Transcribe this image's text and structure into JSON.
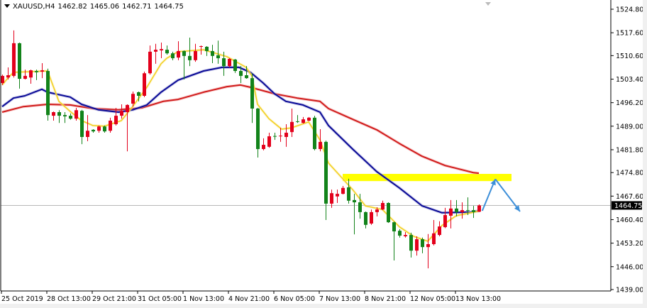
{
  "header": {
    "symbol": "XAUUSD,H4",
    "open": "1462.82",
    "high": "1465.06",
    "low": "1462.71",
    "close": "1464.75"
  },
  "colors": {
    "bull": "#e3001b",
    "bear": "#12831a",
    "ma_fast": "#f2cf1d",
    "ma_mid": "#0a0a96",
    "ma_slow": "#d01c1c",
    "zone": "#ffff00",
    "arrow": "#3d8fd9",
    "price_label_bg": "#000000"
  },
  "chart_data": {
    "type": "candlestick",
    "ylim": [
      1439.0,
      1524.8
    ],
    "y_ticks": [
      "1524.80",
      "1517.60",
      "1510.60",
      "1503.40",
      "1496.20",
      "1489.00",
      "1481.80",
      "1474.80",
      "1467.60",
      "1460.40",
      "1453.20",
      "1446.00",
      "1439.00"
    ],
    "x_ticks": [
      {
        "bar": 0,
        "label": "25 Oct 2019"
      },
      {
        "bar": 8,
        "label": "28 Oct 13:00"
      },
      {
        "bar": 16,
        "label": "29 Oct 21:00"
      },
      {
        "bar": 24,
        "label": "31 Oct 05:00"
      },
      {
        "bar": 32,
        "label": "1 Nov 13:00"
      },
      {
        "bar": 40,
        "label": "4 Nov 21:00"
      },
      {
        "bar": 48,
        "label": "6 Nov 05:00"
      },
      {
        "bar": 56,
        "label": "7 Nov 13:00"
      },
      {
        "bar": 64,
        "label": "8 Nov 21:00"
      },
      {
        "bar": 72,
        "label": "12 Nov 05:00"
      },
      {
        "bar": 80,
        "label": "13 Nov 13:00"
      }
    ],
    "current_price": "1464.75",
    "ohlc": [
      [
        1502.2,
        1504.8,
        1501.6,
        1504.4
      ],
      [
        1503.9,
        1507.0,
        1503.3,
        1504.6
      ],
      [
        1504.4,
        1518.3,
        1503.9,
        1514.4
      ],
      [
        1514.4,
        1514.6,
        1500.5,
        1503.5
      ],
      [
        1503.5,
        1506.3,
        1503.3,
        1504.4
      ],
      [
        1503.9,
        1506.3,
        1502.0,
        1506.1
      ],
      [
        1505.9,
        1506.3,
        1503.1,
        1505.5
      ],
      [
        1505.7,
        1508.3,
        1503.7,
        1506.1
      ],
      [
        1505.9,
        1506.6,
        1490.7,
        1492.4
      ],
      [
        1492.2,
        1493.5,
        1490.7,
        1493.3
      ],
      [
        1493.3,
        1493.9,
        1490.0,
        1492.2
      ],
      [
        1492.4,
        1493.3,
        1490.0,
        1492.0
      ],
      [
        1492.2,
        1492.9,
        1491.0,
        1491.3
      ],
      [
        1491.3,
        1494.6,
        1490.7,
        1493.9
      ],
      [
        1493.7,
        1494.0,
        1483.5,
        1485.7
      ],
      [
        1485.7,
        1492.4,
        1484.4,
        1487.6
      ],
      [
        1487.9,
        1488.1,
        1487.0,
        1487.4
      ],
      [
        1487.6,
        1489.2,
        1487.0,
        1488.9
      ],
      [
        1488.9,
        1489.2,
        1487.0,
        1487.4
      ],
      [
        1487.6,
        1491.6,
        1487.0,
        1490.7
      ],
      [
        1489.6,
        1494.6,
        1489.2,
        1492.2
      ],
      [
        1492.2,
        1495.7,
        1491.3,
        1493.7
      ],
      [
        1493.3,
        1495.7,
        1481.3,
        1495.5
      ],
      [
        1495.9,
        1499.6,
        1495.0,
        1498.9
      ],
      [
        1499.4,
        1499.6,
        1496.6,
        1498.3
      ],
      [
        1498.3,
        1505.7,
        1497.9,
        1505.2
      ],
      [
        1505.2,
        1513.7,
        1504.8,
        1511.8
      ],
      [
        1511.8,
        1514.2,
        1508.1,
        1512.4
      ],
      [
        1512.2,
        1514.6,
        1509.8,
        1512.6
      ],
      [
        1512.4,
        1513.7,
        1510.9,
        1511.3
      ],
      [
        1511.3,
        1511.8,
        1509.2,
        1509.8
      ],
      [
        1510.0,
        1515.0,
        1509.2,
        1512.0
      ],
      [
        1512.0,
        1512.2,
        1503.3,
        1510.5
      ],
      [
        1510.5,
        1516.1,
        1507.4,
        1509.2
      ],
      [
        1509.2,
        1514.2,
        1508.7,
        1512.0
      ],
      [
        1513.3,
        1513.7,
        1510.9,
        1513.5
      ],
      [
        1513.3,
        1513.5,
        1510.5,
        1512.0
      ],
      [
        1512.0,
        1513.9,
        1508.3,
        1510.5
      ],
      [
        1510.7,
        1515.2,
        1508.1,
        1509.8
      ],
      [
        1509.8,
        1511.8,
        1504.4,
        1507.4
      ],
      [
        1507.4,
        1509.8,
        1507.0,
        1509.6
      ],
      [
        1509.4,
        1509.6,
        1505.3,
        1505.9
      ],
      [
        1505.9,
        1507.4,
        1502.2,
        1504.4
      ],
      [
        1504.6,
        1507.4,
        1503.5,
        1503.7
      ],
      [
        1503.7,
        1505.2,
        1490.0,
        1494.4
      ],
      [
        1494.4,
        1494.6,
        1479.4,
        1482.0
      ],
      [
        1482.0,
        1485.3,
        1481.6,
        1483.3
      ],
      [
        1482.7,
        1487.0,
        1482.4,
        1485.9
      ],
      [
        1486.0,
        1487.0,
        1484.8,
        1485.9
      ],
      [
        1485.9,
        1488.5,
        1484.2,
        1486.1
      ],
      [
        1485.7,
        1489.6,
        1482.7,
        1487.0
      ],
      [
        1487.2,
        1494.4,
        1485.7,
        1490.3
      ],
      [
        1490.5,
        1492.4,
        1490.0,
        1490.3
      ],
      [
        1490.0,
        1491.8,
        1489.8,
        1491.1
      ],
      [
        1490.7,
        1491.8,
        1490.5,
        1491.6
      ],
      [
        1491.6,
        1492.2,
        1481.6,
        1482.0
      ],
      [
        1482.0,
        1488.1,
        1481.3,
        1484.2
      ],
      [
        1484.2,
        1484.6,
        1460.3,
        1465.3
      ],
      [
        1465.3,
        1469.6,
        1464.0,
        1468.5
      ],
      [
        1467.5,
        1469.6,
        1465.5,
        1468.3
      ],
      [
        1468.3,
        1470.7,
        1468.1,
        1470.1
      ],
      [
        1470.3,
        1472.9,
        1465.3,
        1466.2
      ],
      [
        1466.4,
        1468.3,
        1455.9,
        1465.7
      ],
      [
        1465.7,
        1468.3,
        1460.7,
        1462.7
      ],
      [
        1462.7,
        1462.9,
        1457.7,
        1458.8
      ],
      [
        1459.2,
        1463.5,
        1458.8,
        1462.7
      ],
      [
        1462.7,
        1464.2,
        1461.4,
        1463.5
      ],
      [
        1463.5,
        1466.2,
        1463.3,
        1465.5
      ],
      [
        1465.5,
        1465.7,
        1459.4,
        1459.6
      ],
      [
        1459.6,
        1459.8,
        1447.9,
        1456.8
      ],
      [
        1457.0,
        1457.5,
        1454.9,
        1455.5
      ],
      [
        1455.3,
        1456.6,
        1454.9,
        1455.7
      ],
      [
        1455.7,
        1456.4,
        1448.8,
        1450.9
      ],
      [
        1450.9,
        1455.3,
        1449.4,
        1454.4
      ],
      [
        1454.4,
        1454.9,
        1450.1,
        1452.0
      ],
      [
        1452.0,
        1456.0,
        1445.5,
        1452.9
      ],
      [
        1452.9,
        1460.3,
        1452.5,
        1456.2
      ],
      [
        1455.7,
        1459.9,
        1455.3,
        1458.3
      ],
      [
        1458.1,
        1464.0,
        1457.8,
        1461.8
      ],
      [
        1461.6,
        1466.4,
        1457.7,
        1463.8
      ],
      [
        1463.8,
        1466.4,
        1461.4,
        1462.7
      ],
      [
        1462.7,
        1465.7,
        1460.7,
        1463.3
      ],
      [
        1463.3,
        1467.2,
        1461.8,
        1463.1
      ],
      [
        1463.3,
        1464.6,
        1460.9,
        1462.7
      ],
      [
        1462.82,
        1465.06,
        1462.71,
        1464.75
      ]
    ],
    "ma_fast": [
      [
        0,
        1501.6
      ],
      [
        1,
        1503.7
      ],
      [
        2,
        1505.5
      ],
      [
        8,
        1505.9
      ],
      [
        10,
        1496.6
      ],
      [
        12,
        1493.5
      ],
      [
        14,
        1490.7
      ],
      [
        16,
        1489.2
      ],
      [
        18,
        1489.0
      ],
      [
        21,
        1490.7
      ],
      [
        23,
        1495.0
      ],
      [
        25.5,
        1500.9
      ],
      [
        28,
        1508.1
      ],
      [
        29,
        1509.8
      ],
      [
        31,
        1511.8
      ],
      [
        35.5,
        1512.4
      ],
      [
        39.6,
        1510.3
      ],
      [
        43,
        1507.0
      ],
      [
        44,
        1504.4
      ],
      [
        45,
        1495.7
      ],
      [
        47,
        1491.3
      ],
      [
        49.25,
        1488.1
      ],
      [
        51,
        1488.5
      ],
      [
        54,
        1490.3
      ],
      [
        56,
        1484.8
      ],
      [
        57.5,
        1477.7
      ],
      [
        61.75,
        1469.6
      ],
      [
        64,
        1464.6
      ],
      [
        67,
        1463.5
      ],
      [
        70,
        1458.2
      ],
      [
        72.5,
        1455.3
      ],
      [
        75,
        1453.8
      ],
      [
        77.5,
        1458.6
      ],
      [
        80,
        1461.6
      ],
      [
        84,
        1463.0
      ]
    ],
    "ma_mid": [
      [
        0,
        1495.0
      ],
      [
        2,
        1497.6
      ],
      [
        4,
        1498.3
      ],
      [
        7,
        1500.3
      ],
      [
        8,
        1499.4
      ],
      [
        12,
        1497.9
      ],
      [
        14,
        1495.7
      ],
      [
        17,
        1494.0
      ],
      [
        20.5,
        1493.3
      ],
      [
        23,
        1494.0
      ],
      [
        25.5,
        1495.5
      ],
      [
        28,
        1499.4
      ],
      [
        31,
        1503.1
      ],
      [
        35.5,
        1505.9
      ],
      [
        38.75,
        1507.0
      ],
      [
        41.75,
        1507.0
      ],
      [
        43.75,
        1505.5
      ],
      [
        46,
        1502.2
      ],
      [
        48,
        1498.9
      ],
      [
        50,
        1496.6
      ],
      [
        53,
        1495.5
      ],
      [
        56,
        1493.3
      ],
      [
        57.5,
        1489.2
      ],
      [
        61.75,
        1482.0
      ],
      [
        66,
        1475.1
      ],
      [
        70,
        1470.1
      ],
      [
        74,
        1464.6
      ],
      [
        77.5,
        1462.5
      ],
      [
        82.5,
        1462.7
      ],
      [
        84,
        1463.1
      ]
    ],
    "ma_slow": [
      [
        0,
        1493.3
      ],
      [
        3.75,
        1495.0
      ],
      [
        8,
        1495.7
      ],
      [
        12,
        1495.5
      ],
      [
        16,
        1494.4
      ],
      [
        20.5,
        1494.0
      ],
      [
        24.6,
        1494.6
      ],
      [
        28.4,
        1496.6
      ],
      [
        31,
        1497.2
      ],
      [
        35.5,
        1499.4
      ],
      [
        39.6,
        1501.1
      ],
      [
        42,
        1501.6
      ],
      [
        43.75,
        1500.9
      ],
      [
        48,
        1498.9
      ],
      [
        52,
        1497.6
      ],
      [
        56,
        1496.6
      ],
      [
        57.5,
        1494.4
      ],
      [
        61.75,
        1491.1
      ],
      [
        66,
        1487.9
      ],
      [
        70,
        1483.7
      ],
      [
        74,
        1479.8
      ],
      [
        78,
        1477.0
      ],
      [
        83,
        1474.8
      ],
      [
        84,
        1474.6
      ]
    ],
    "resistance_zone": {
      "from_bar": 60,
      "to_bar": 89.75,
      "low": 1472.2,
      "high": 1474.4
    },
    "forecast_path": [
      [
        84.6,
        1463.1
      ],
      [
        86.9,
        1472.8
      ],
      [
        91.25,
        1462.9
      ]
    ]
  }
}
